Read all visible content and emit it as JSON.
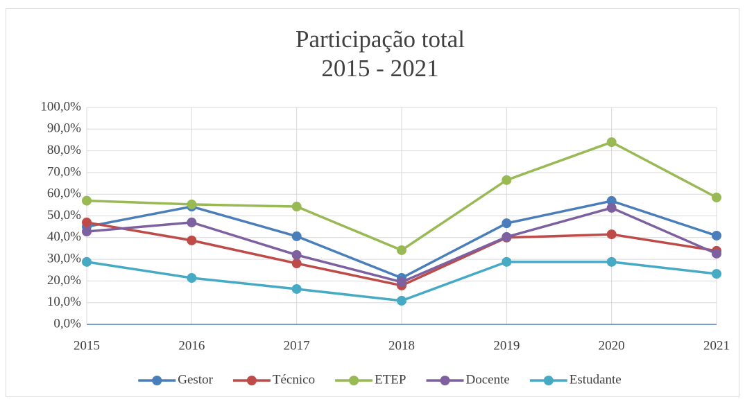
{
  "chart_data": {
    "type": "line",
    "title": [
      "Participação total",
      "2015 - 2021"
    ],
    "categories": [
      "2015",
      "2016",
      "2017",
      "2018",
      "2019",
      "2020",
      "2021"
    ],
    "series": [
      {
        "name": "Gestor",
        "color": "#4a7ebb",
        "values": [
          45,
          54.3,
          40.6,
          21.4,
          46.6,
          56.9,
          40.9
        ]
      },
      {
        "name": "Técnico",
        "color": "#be4b48",
        "values": [
          47,
          38.7,
          28.1,
          17.9,
          40,
          41.5,
          33.9
        ]
      },
      {
        "name": "ETEP",
        "color": "#98b954",
        "values": [
          57,
          55.3,
          54.3,
          34.2,
          66.5,
          84,
          58.5
        ]
      },
      {
        "name": "Docente",
        "color": "#7d60a0",
        "values": [
          42.8,
          47,
          32,
          19.5,
          40.3,
          53.7,
          32.6
        ]
      },
      {
        "name": "Estudante",
        "color": "#46aac5",
        "values": [
          28.8,
          21.4,
          16.3,
          10.9,
          28.8,
          28.8,
          23.3
        ]
      }
    ],
    "ylim": [
      0,
      100
    ],
    "yticks": [
      {
        "value": 0,
        "label": "0,0%"
      },
      {
        "value": 10,
        "label": "10,0%"
      },
      {
        "value": 20,
        "label": "20,0%"
      },
      {
        "value": 30,
        "label": "30,0%"
      },
      {
        "value": 40,
        "label": "40,0%"
      },
      {
        "value": 50,
        "label": "50,0%"
      },
      {
        "value": 60,
        "label": "60,0%"
      },
      {
        "value": 70,
        "label": "70,0%"
      },
      {
        "value": 80,
        "label": "80,0%"
      },
      {
        "value": 90,
        "label": "90,0%"
      },
      {
        "value": 100,
        "label": "100,0%"
      }
    ],
    "grid": true,
    "legend": "bottom"
  }
}
